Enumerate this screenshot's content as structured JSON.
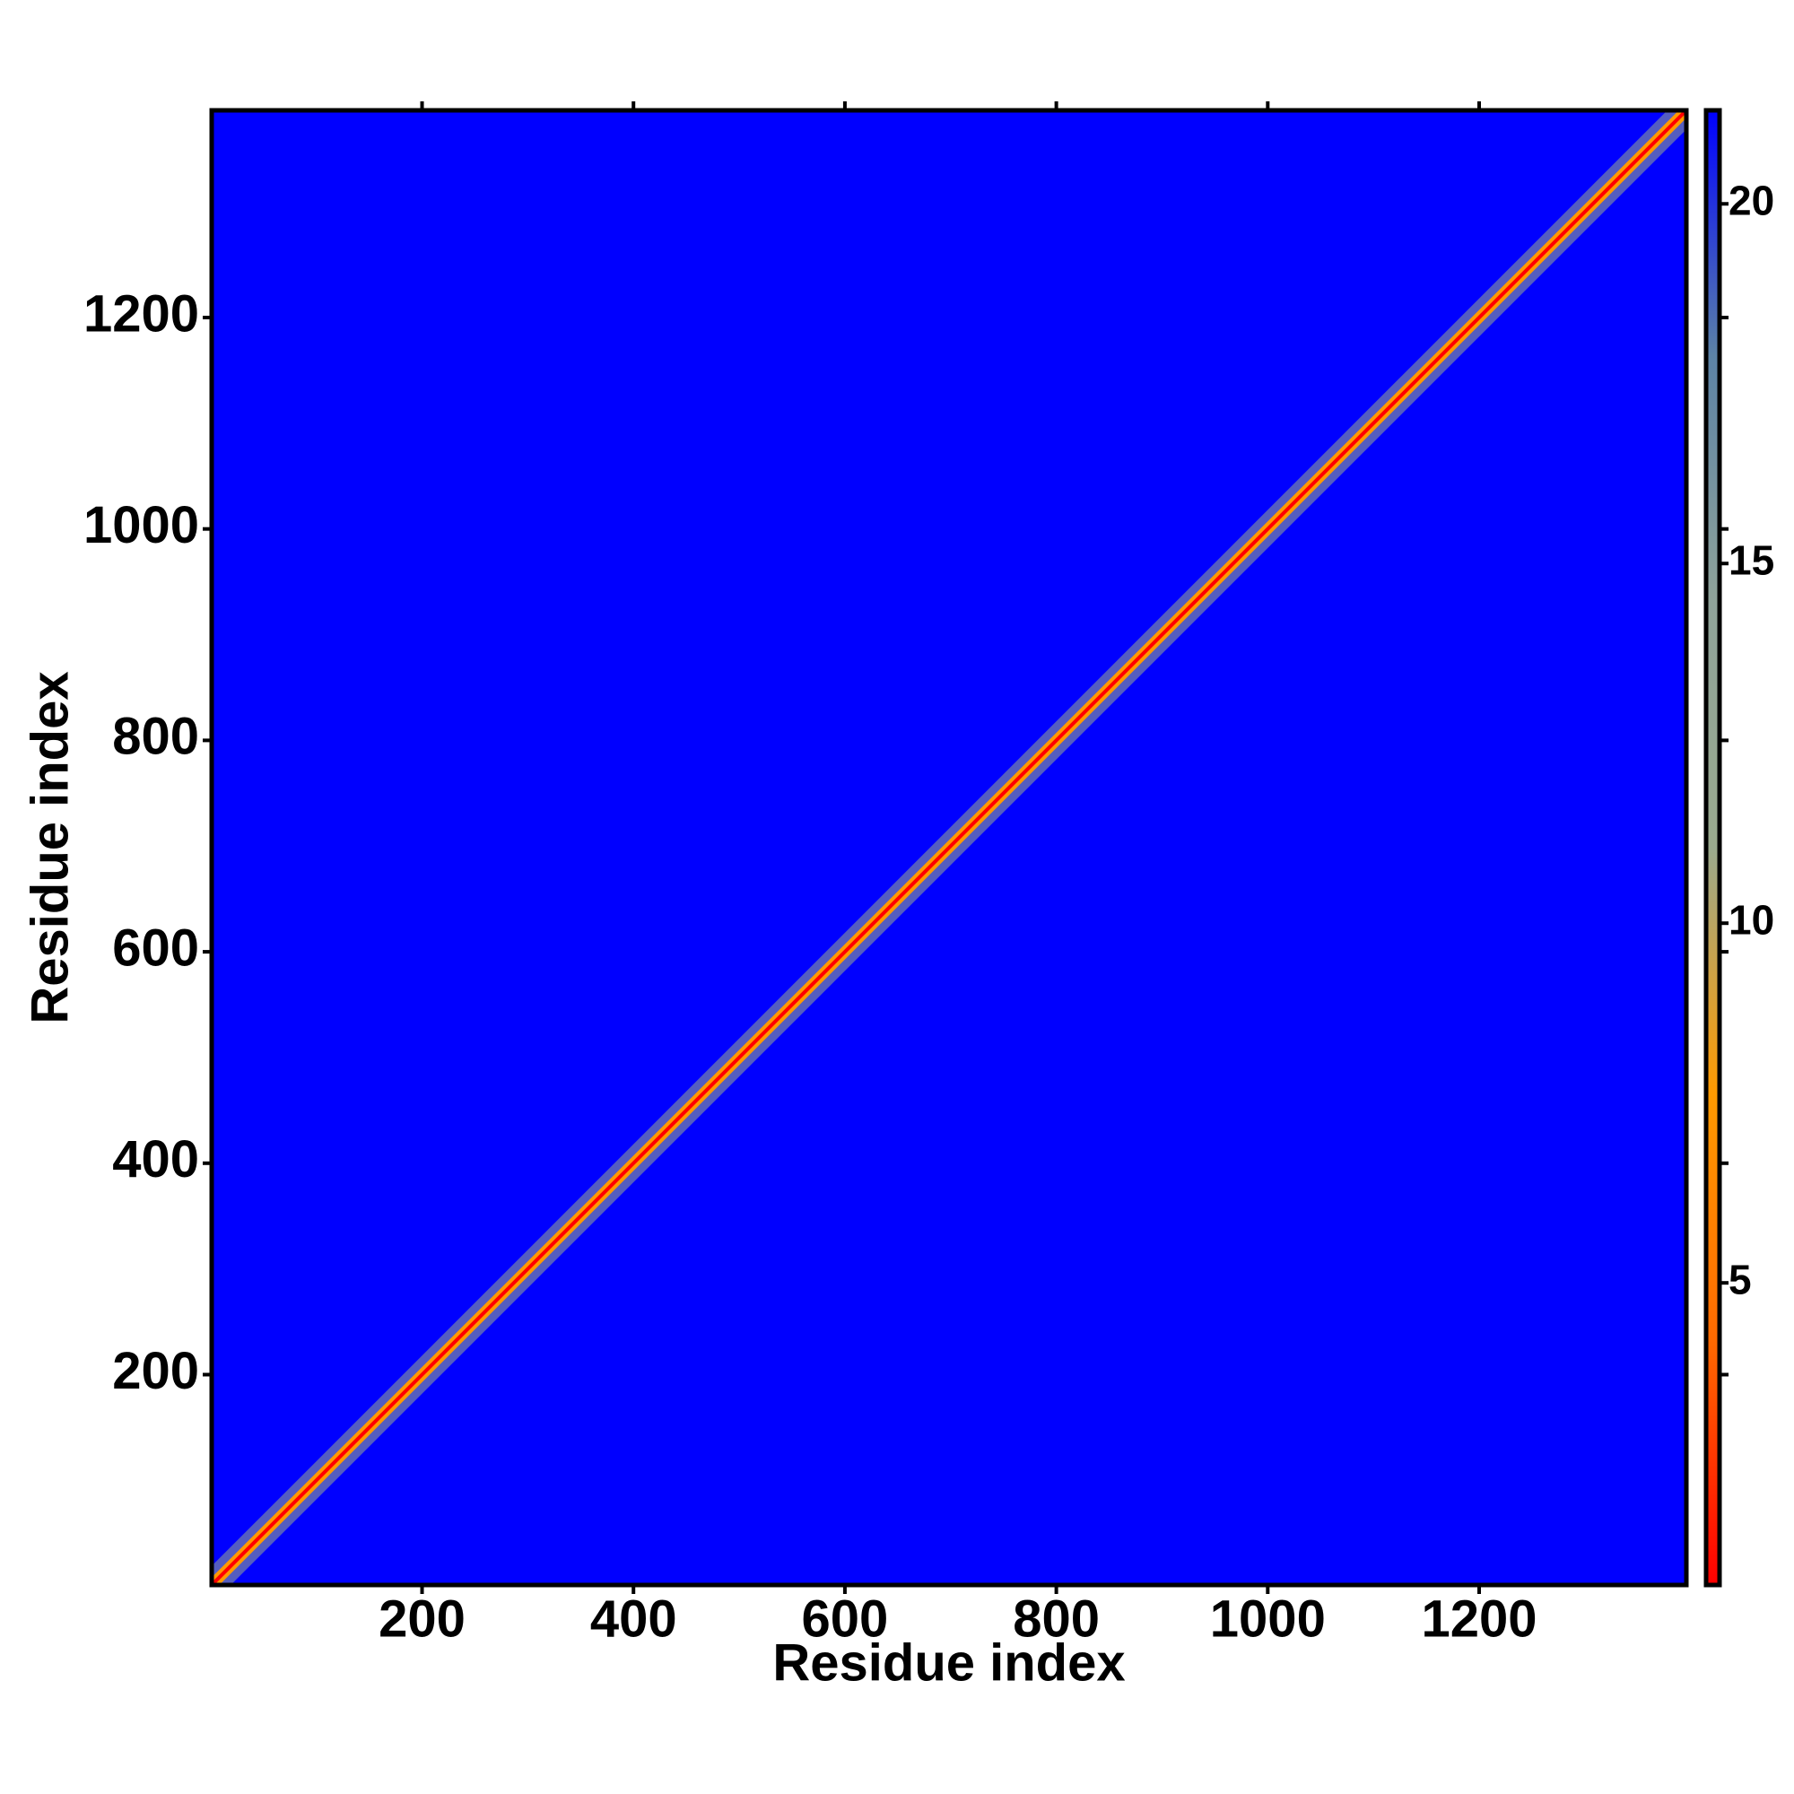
{
  "chart_data": {
    "type": "heatmap",
    "xlabel": "Residue index",
    "ylabel": "Residue index",
    "xlim": [
      1,
      1396
    ],
    "ylim": [
      1,
      1396
    ],
    "xticks": [
      200,
      400,
      600,
      800,
      1000,
      1200
    ],
    "yticks": [
      200,
      400,
      600,
      800,
      1000,
      1200
    ],
    "background_color": "#0000ff",
    "colorbar": {
      "lim": [
        0.8,
        21.3
      ],
      "ticks": [
        5,
        10,
        15,
        20
      ],
      "colors": [
        "#ff0000",
        "#ff6a00",
        "#ff9a00",
        "#9aaa8e",
        "#8fa39a",
        "#5c83a6",
        "#0000ff"
      ]
    }
  }
}
